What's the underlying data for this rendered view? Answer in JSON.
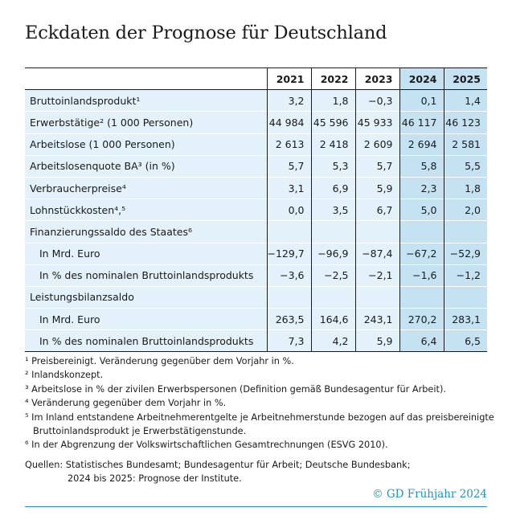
{
  "title": "Eckdaten der Prognose für Deutschland",
  "table": {
    "label_header": "",
    "years": [
      "2021",
      "2022",
      "2023",
      "2024",
      "2025"
    ],
    "rows": [
      {
        "label": "Bruttoinlandsprodukt¹",
        "sub": false,
        "values": [
          "3,2",
          "1,8",
          "−0,3",
          "0,1",
          "1,4"
        ]
      },
      {
        "label": "Erwerbstätige² (1 000 Personen)",
        "sub": false,
        "values": [
          "44 984",
          "45 596",
          "45 933",
          "46 117",
          "46 123"
        ]
      },
      {
        "label": "Arbeitslose (1 000 Personen)",
        "sub": false,
        "values": [
          "2 613",
          "2 418",
          "2 609",
          "2 694",
          "2 581"
        ]
      },
      {
        "label": "Arbeitslosenquote BA³ (in %)",
        "sub": false,
        "values": [
          "5,7",
          "5,3",
          "5,7",
          "5,8",
          "5,5"
        ]
      },
      {
        "label": "Verbraucherpreise⁴",
        "sub": false,
        "values": [
          "3,1",
          "6,9",
          "5,9",
          "2,3",
          "1,8"
        ]
      },
      {
        "label": "Lohnstückkosten⁴,⁵",
        "sub": false,
        "values": [
          "0,0",
          "3,5",
          "6,7",
          "5,0",
          "2,0"
        ]
      },
      {
        "label": "Finanzierungssaldo des Staates⁶",
        "sub": false,
        "values": [
          "",
          "",
          "",
          "",
          ""
        ]
      },
      {
        "label": "In Mrd. Euro",
        "sub": true,
        "values": [
          "−129,7",
          "−96,9",
          "−87,4",
          "−67,2",
          "−52,9"
        ]
      },
      {
        "label": "In % des nominalen Bruttoinlandsprodukts",
        "sub": true,
        "values": [
          "−3,6",
          "−2,5",
          "−2,1",
          "−1,6",
          "−1,2"
        ]
      },
      {
        "label": "Leistungsbilanzsaldo",
        "sub": false,
        "values": [
          "",
          "",
          "",
          "",
          ""
        ]
      },
      {
        "label": "In Mrd. Euro",
        "sub": true,
        "values": [
          "263,5",
          "164,6",
          "243,1",
          "270,2",
          "283,1"
        ]
      },
      {
        "label": "In % des nominalen Bruttoinlandsprodukts",
        "sub": true,
        "values": [
          "7,3",
          "4,2",
          "5,9",
          "6,4",
          "6,5"
        ]
      }
    ]
  },
  "footnotes": [
    {
      "text": "¹ Preisbereinigt. Veränderung gegenüber dem Vorjahr in %.",
      "cont": false
    },
    {
      "text": "² Inlandskonzept.",
      "cont": false
    },
    {
      "text": "³ Arbeitslose in % der zivilen Erwerbspersonen (Definition gemäß Bundesagentur für Arbeit).",
      "cont": false
    },
    {
      "text": "⁴ Veränderung gegenüber dem Vorjahr in %.",
      "cont": false
    },
    {
      "text": "⁵ Im Inland entstandene Arbeitnehmerentgelte je Arbeitnehmerstunde bezogen auf das preisbereinigte",
      "cont": false
    },
    {
      "text": "Bruttoinlandsprodukt je Erwerbstätigenstunde.",
      "cont": true
    },
    {
      "text": "⁶ In der Abgrenzung der Volkswirtschaftlichen Gesamtrechnungen (ESVG 2010).",
      "cont": false
    }
  ],
  "sources": {
    "line1": "Quellen: Statistisches Bundesamt; Bundesagentur für Arbeit; Deutsche Bundesbank;",
    "line2": "2024 bis 2025: Prognose der Institute."
  },
  "credit": "© GD Frühjahr 2024",
  "colors": {
    "row_background": "#e3f1fa",
    "forecast_background": "#c5e2f3",
    "accent": "#1f93b8"
  }
}
